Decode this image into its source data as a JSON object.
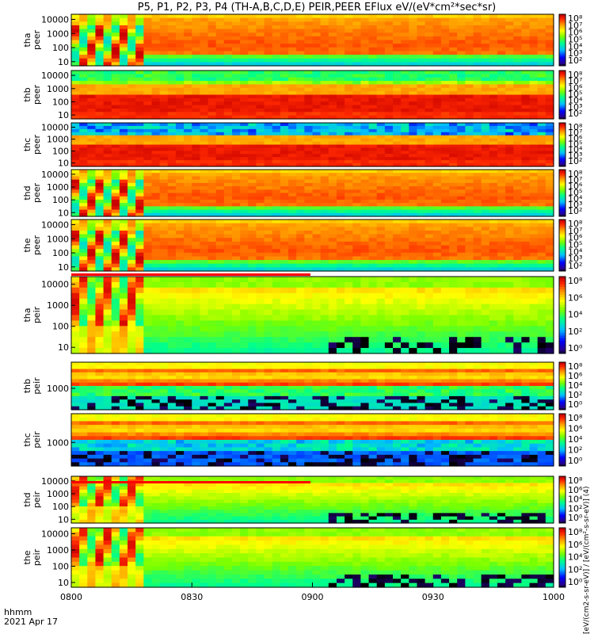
{
  "title": "P5, P1, P2, P3, P4 (TH-A,B,C,D,E) PEIR,PEER EFlux eV/(eV*cm²*sec*sr)",
  "footer": {
    "line1": "hhmm",
    "line2": "2021 Apr 17"
  },
  "colorbar_unit": "[eV/(cm2-s-sr-eV)] / [eV/(cm²-s-sr-eV)] (4)",
  "colors": {
    "accent_low": "#0000ff",
    "accent_high": "#ff0000",
    "gap_white": "#ffffff",
    "quality_flag": "#ff0000"
  },
  "chart_data": {
    "type": "heatmap",
    "title": "P5, P1, P2, P3, P4 (TH-A,B,C,D,E) PEIR,PEER EFlux eV/(eV*cm²*sec*sr)",
    "x_ticks": [
      "0800",
      "0830",
      "0900",
      "0930",
      "1000"
    ],
    "x_range": [
      "08:00",
      "10:00"
    ],
    "colormap": "rainbow",
    "panels": [
      {
        "id": "tha-peer",
        "label1": "tha",
        "label2": "peer",
        "yticks": [
          "10000",
          "1000",
          "100",
          "10"
        ],
        "cb_ticks": [
          "10⁸",
          "10⁷",
          "10⁶",
          "10⁵",
          "10⁴",
          "10³",
          "10²"
        ],
        "profile": "burst",
        "cb_min": 2,
        "cb_max": 8
      },
      {
        "id": "thb-peer",
        "label1": "thb",
        "label2": "peer",
        "yticks": [
          "10000",
          "1000",
          "100",
          "10"
        ],
        "cb_ticks": [
          "10⁸",
          "10⁷",
          "10⁶",
          "10⁵",
          "10⁴",
          "10³",
          "10²"
        ],
        "profile": "band",
        "cb_min": 2,
        "cb_max": 8
      },
      {
        "id": "thc-peer",
        "label1": "thc",
        "label2": "peer",
        "yticks": [
          "10000",
          "1000",
          "100",
          "10"
        ],
        "cb_ticks": [
          "10⁸",
          "10⁷",
          "10⁶",
          "10⁵",
          "10⁴",
          "10³",
          "10²"
        ],
        "profile": "band-blue",
        "cb_min": 2,
        "cb_max": 8
      },
      {
        "id": "thd-peer",
        "label1": "thd",
        "label2": "peer",
        "yticks": [
          "10000",
          "1000",
          "100",
          "10"
        ],
        "cb_ticks": [
          "10⁸",
          "10⁷",
          "10⁶",
          "10⁵",
          "10⁴",
          "10³",
          "10²"
        ],
        "profile": "burst",
        "cb_min": 2,
        "cb_max": 8
      },
      {
        "id": "the-peer",
        "label1": "the",
        "label2": "peer",
        "yticks": [
          "10000",
          "1000",
          "100",
          "10"
        ],
        "cb_ticks": [
          "10⁸",
          "10⁷",
          "10⁶",
          "10⁵",
          "10⁴",
          "10³",
          "10²"
        ],
        "profile": "burst-spikes",
        "cb_min": 2,
        "cb_max": 8
      },
      {
        "id": "tha-peir",
        "label1": "tha",
        "label2": "peir",
        "yticks": [
          "10000",
          "1000",
          "100",
          "10"
        ],
        "cb_ticks": [
          "10⁸",
          "10⁶",
          "10⁴",
          "10²",
          "10⁰"
        ],
        "profile": "ion",
        "cb_min": 0,
        "cb_max": 8
      },
      {
        "id": "thb-peir",
        "label1": "thb",
        "label2": "peir",
        "yticks": [
          "1000"
        ],
        "cb_ticks": [
          "10⁸",
          "10⁶",
          "10⁴",
          "10²",
          "10⁰"
        ],
        "profile": "ion-band",
        "cb_min": 0,
        "cb_max": 8
      },
      {
        "id": "thc-peir",
        "label1": "thc",
        "label2": "peir",
        "yticks": [
          "1000"
        ],
        "cb_ticks": [
          "10⁸",
          "10⁶",
          "10⁴",
          "10²",
          "10⁰"
        ],
        "profile": "ion-band-blue",
        "cb_min": 0,
        "cb_max": 8
      },
      {
        "id": "thd-peir",
        "label1": "thd",
        "label2": "peir",
        "yticks": [
          "10000",
          "1000",
          "100",
          "10"
        ],
        "cb_ticks": [
          "10⁸",
          "10⁶",
          "10⁴",
          "10²",
          "10⁰"
        ],
        "profile": "ion",
        "cb_min": 0,
        "cb_max": 8
      },
      {
        "id": "the-peir",
        "label1": "the",
        "label2": "peir",
        "yticks": [
          "10000",
          "1000",
          "100",
          "10"
        ],
        "cb_ticks": [
          "10⁸",
          "10⁶",
          "10⁴",
          "10²",
          "10⁰"
        ],
        "profile": "ion-spikes",
        "cb_min": 0,
        "cb_max": 8
      }
    ]
  }
}
